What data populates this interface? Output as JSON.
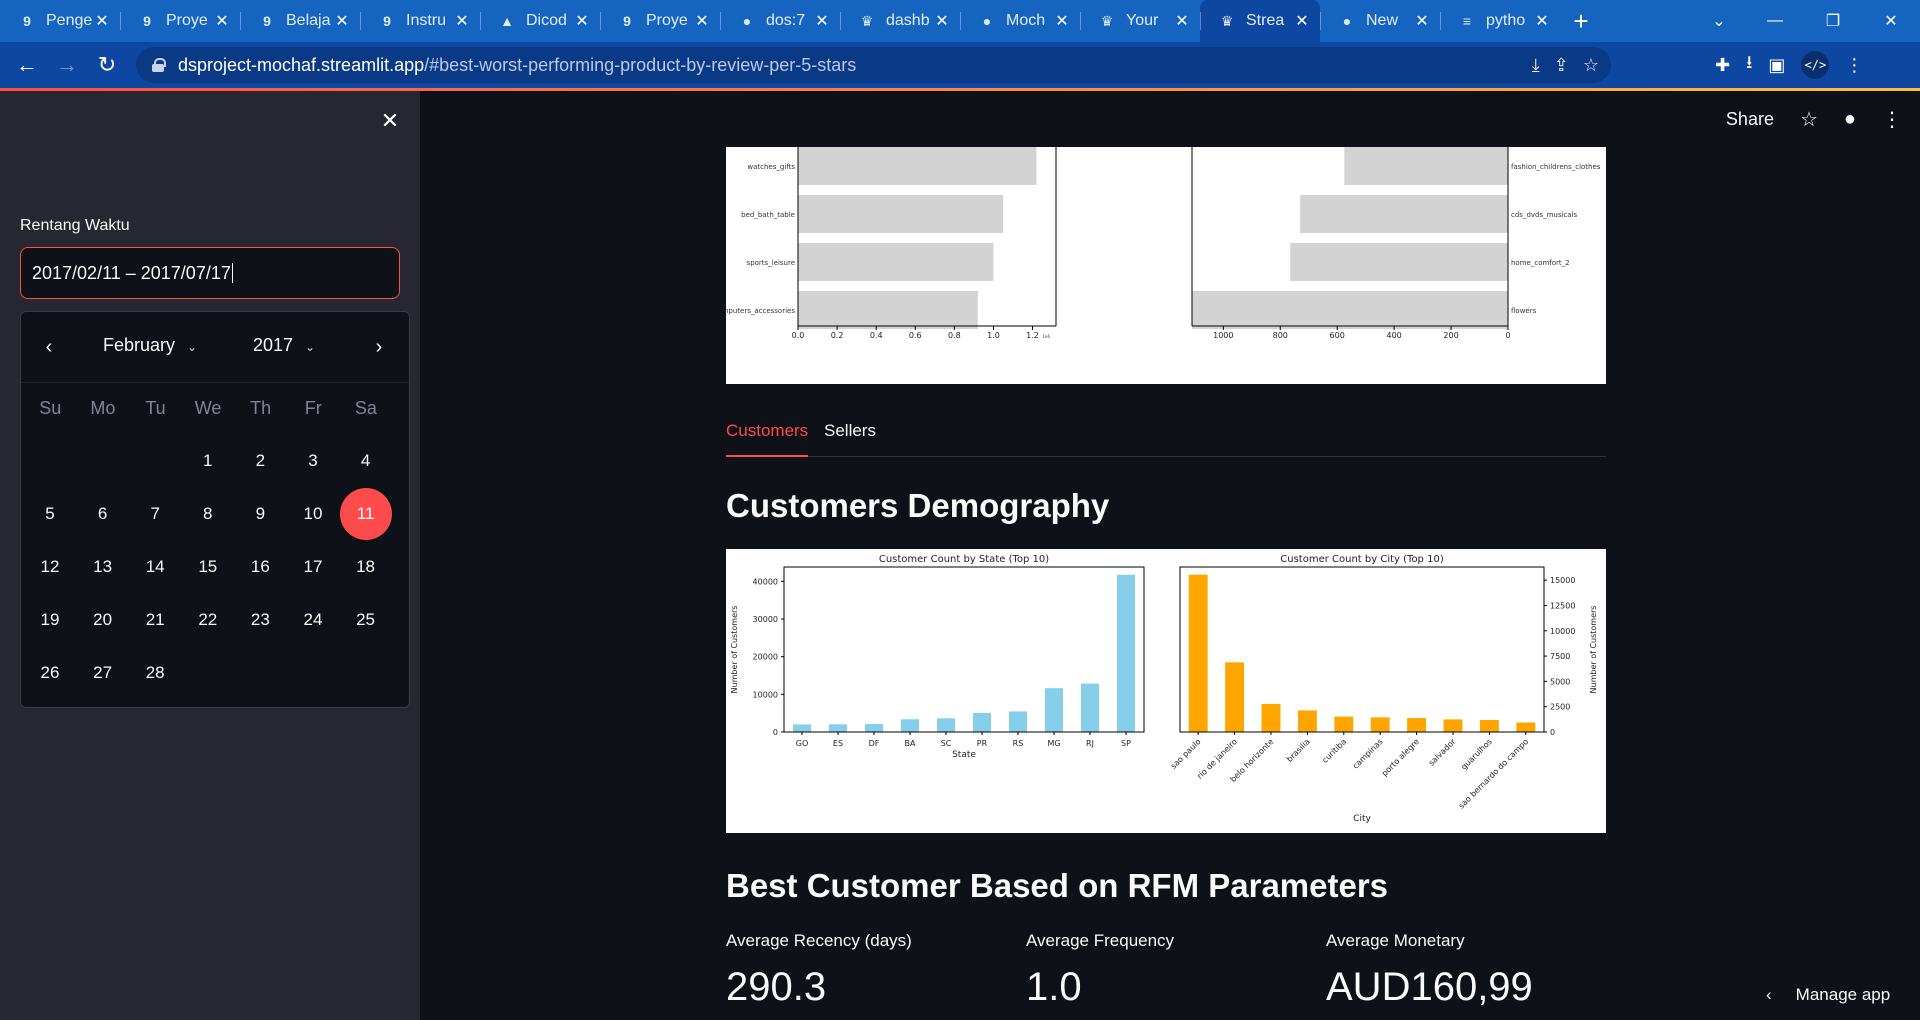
{
  "browser": {
    "tabs": [
      {
        "title": "Penge",
        "icon": "g-icon",
        "glyph": "9"
      },
      {
        "title": "Proye",
        "icon": "g-icon",
        "glyph": "9"
      },
      {
        "title": "Belaja",
        "icon": "g-icon",
        "glyph": "9"
      },
      {
        "title": "Instru",
        "icon": "g-icon",
        "glyph": "9"
      },
      {
        "title": "Dicod",
        "icon": "drive-icon",
        "glyph": "▲"
      },
      {
        "title": "Proye",
        "icon": "g-icon",
        "glyph": "9"
      },
      {
        "title": "dos:7",
        "icon": "globe-icon",
        "glyph": "●"
      },
      {
        "title": "dashb",
        "icon": "crown-icon",
        "glyph": "♛"
      },
      {
        "title": "Moch",
        "icon": "github-icon",
        "glyph": "●"
      },
      {
        "title": "Your",
        "icon": "streamlit-icon",
        "glyph": "♛"
      },
      {
        "title": "Strea",
        "icon": "crown-icon",
        "glyph": "♛"
      },
      {
        "title": "New",
        "icon": "chrome-icon",
        "glyph": "●"
      },
      {
        "title": "pytho",
        "icon": "stackoverflow-icon",
        "glyph": "≡"
      }
    ],
    "url_host": "dsproject-mochaf.streamlit.app",
    "url_path": "/#best-worst-performing-product-by-review-per-5-stars"
  },
  "sidebar": {
    "date_label": "Rentang Waktu",
    "date_value": "2017/02/11 – 2017/07/17",
    "calendar": {
      "month": "February",
      "year": "2017",
      "weekdays": [
        "Su",
        "Mo",
        "Tu",
        "We",
        "Th",
        "Fr",
        "Sa"
      ],
      "first_weekday_index": 3,
      "days": 28,
      "selected_day": 11
    }
  },
  "header": {
    "share_label": "Share"
  },
  "tabs": [
    {
      "label": "Customers"
    },
    {
      "label": "Sellers"
    }
  ],
  "sections": {
    "demography_title": "Customers Demography",
    "rfm_title": "Best Customer Based on RFM Parameters"
  },
  "metrics": [
    {
      "label": "Average Recency (days)",
      "value": "290.3"
    },
    {
      "label": "Average Frequency",
      "value": "1.0"
    },
    {
      "label": "Average Monetary",
      "value": "AUD160,99"
    }
  ],
  "manage_app_label": "Manage app",
  "colors": {
    "accent": "#ff4b4b",
    "state_bar": "#87ceeb",
    "city_bar": "#ffa500",
    "product_bar": "#d3d3d3"
  },
  "chart_data": [
    {
      "type": "bar",
      "orientation": "horizontal",
      "categories": [
        "watches_gifts",
        "bed_bath_table",
        "sports_leisure",
        "computers_accessories"
      ],
      "values": [
        1.22,
        1.05,
        1.0,
        0.92
      ],
      "xticks": [
        "0.0",
        "0.2",
        "0.4",
        "0.6",
        "0.8",
        "1.0",
        "1.2"
      ],
      "xlim": [
        0,
        1.32
      ],
      "offset_label": "1e6"
    },
    {
      "type": "bar",
      "orientation": "horizontal",
      "x_inverted": true,
      "categories": [
        "fashion_childrens_clothes",
        "cds_dvds_musicals",
        "home_comfort_2",
        "flowers"
      ],
      "values": [
        575,
        730,
        765,
        1110
      ],
      "xticks": [
        "1000",
        "800",
        "600",
        "400",
        "200",
        "0"
      ],
      "xlim": [
        1110,
        0
      ]
    },
    {
      "type": "bar",
      "title": "Customer Count by State (Top 10)",
      "xlabel": "State",
      "ylabel": "Number of Customers",
      "categories": [
        "GO",
        "ES",
        "DF",
        "BA",
        "SC",
        "PR",
        "RS",
        "MG",
        "RJ",
        "SP"
      ],
      "values": [
        2020,
        2033,
        2140,
        3380,
        3637,
        5045,
        5466,
        11635,
        12852,
        41746
      ],
      "yticks": [
        "0",
        "10000",
        "20000",
        "30000",
        "40000"
      ],
      "ylim": [
        0,
        43800
      ]
    },
    {
      "type": "bar",
      "title": "Customer Count by City (Top 10)",
      "xlabel": "City",
      "ylabel": "Number of Customers",
      "categories": [
        "sao paulo",
        "rio de janeiro",
        "belo horizonte",
        "brasilia",
        "curitiba",
        "campinas",
        "porto alegre",
        "salvador",
        "guarulhos",
        "sao bernardo do campo"
      ],
      "values": [
        15540,
        6882,
        2773,
        2131,
        1521,
        1444,
        1379,
        1245,
        1189,
        938
      ],
      "yticks": [
        "0",
        "2500",
        "5000",
        "7500",
        "10000",
        "12500",
        "15000"
      ],
      "ylim": [
        0,
        16300
      ]
    }
  ]
}
